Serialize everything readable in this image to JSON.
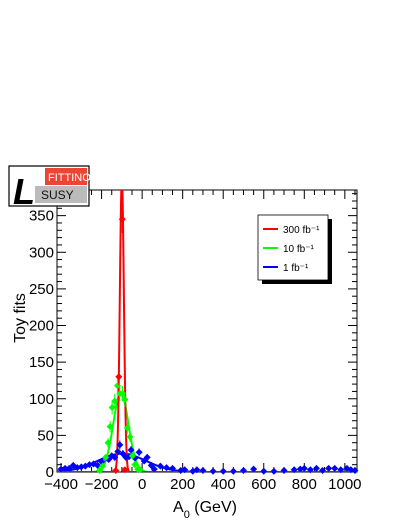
{
  "chart_data": {
    "type": "line",
    "xlabel": "A_0 (GeV)",
    "ylabel": "Toy fits",
    "xlim": [
      -420,
      1060
    ],
    "ylim": [
      0,
      385
    ],
    "xticks": [
      -400,
      -200,
      0,
      200,
      400,
      600,
      800,
      1000
    ],
    "xtick_labels": [
      "−400",
      "−200",
      "0",
      "200",
      "400",
      "600",
      "800",
      "1000"
    ],
    "yticks": [
      0,
      50,
      100,
      150,
      200,
      250,
      300,
      350
    ],
    "ytick_labels": [
      "0",
      "50",
      "100",
      "150",
      "200",
      "250",
      "300",
      "350"
    ],
    "grid": false,
    "legend_position": "top-right",
    "series": [
      {
        "name": "300 fb⁻¹",
        "color": "#ff0000",
        "markers": [
          [
            -130,
            2
          ],
          [
            -115,
            130
          ],
          [
            -98,
            345
          ],
          [
            -85,
            3
          ]
        ],
        "fit": {
          "shape": "gaussian",
          "amplitude": 400,
          "mean": -100,
          "sigma": 10
        }
      },
      {
        "name": "10 fb⁻¹",
        "color": "#00ff00",
        "markers": [
          [
            -210,
            2
          ],
          [
            -195,
            8
          ],
          [
            -180,
            20
          ],
          [
            -168,
            40
          ],
          [
            -158,
            62
          ],
          [
            -148,
            88
          ],
          [
            -135,
            97
          ],
          [
            -122,
            118
          ],
          [
            -110,
            107
          ],
          [
            -97,
            107
          ],
          [
            -85,
            99
          ],
          [
            -73,
            60
          ],
          [
            -60,
            48
          ],
          [
            -48,
            22
          ],
          [
            -36,
            10
          ],
          [
            -22,
            4
          ],
          [
            -10,
            3
          ]
        ],
        "fit": {
          "shape": "gaussian",
          "amplitude": 107,
          "mean": -105,
          "sigma": 38
        }
      },
      {
        "name": "1 fb⁻¹",
        "color": "#0000ff",
        "markers": [
          [
            -400,
            4
          ],
          [
            -380,
            5
          ],
          [
            -360,
            5
          ],
          [
            -340,
            9
          ],
          [
            -320,
            6
          ],
          [
            -300,
            7
          ],
          [
            -280,
            8
          ],
          [
            -260,
            10
          ],
          [
            -240,
            11
          ],
          [
            -220,
            9
          ],
          [
            -200,
            14
          ],
          [
            -180,
            19
          ],
          [
            -165,
            17
          ],
          [
            -150,
            22
          ],
          [
            -135,
            20
          ],
          [
            -120,
            28
          ],
          [
            -110,
            37
          ],
          [
            -95,
            25
          ],
          [
            -80,
            20
          ],
          [
            -65,
            21
          ],
          [
            -55,
            30
          ],
          [
            -35,
            19
          ],
          [
            -15,
            27
          ],
          [
            10,
            15
          ],
          [
            25,
            20
          ],
          [
            45,
            9
          ],
          [
            60,
            4
          ],
          [
            90,
            8
          ],
          [
            120,
            6
          ],
          [
            150,
            5
          ],
          [
            190,
            2
          ],
          [
            210,
            3
          ],
          [
            250,
            1
          ],
          [
            270,
            3
          ],
          [
            300,
            2
          ],
          [
            350,
            1
          ],
          [
            400,
            1
          ],
          [
            450,
            1
          ],
          [
            500,
            2
          ],
          [
            550,
            4
          ],
          [
            600,
            1
          ],
          [
            650,
            1
          ],
          [
            700,
            2
          ],
          [
            750,
            3
          ],
          [
            780,
            4
          ],
          [
            800,
            5
          ],
          [
            830,
            3
          ],
          [
            860,
            5
          ],
          [
            890,
            2
          ],
          [
            920,
            5
          ],
          [
            950,
            5
          ],
          [
            980,
            3
          ],
          [
            1010,
            5
          ],
          [
            1030,
            3
          ],
          [
            1050,
            2
          ]
        ],
        "fit": {
          "shape": "gaussian",
          "amplitude": 25,
          "mean": -100,
          "sigma": 120
        }
      }
    ]
  },
  "logo": {
    "script_letter": "L",
    "word_top": "FITTINO",
    "word_bottom": "SUSY"
  }
}
